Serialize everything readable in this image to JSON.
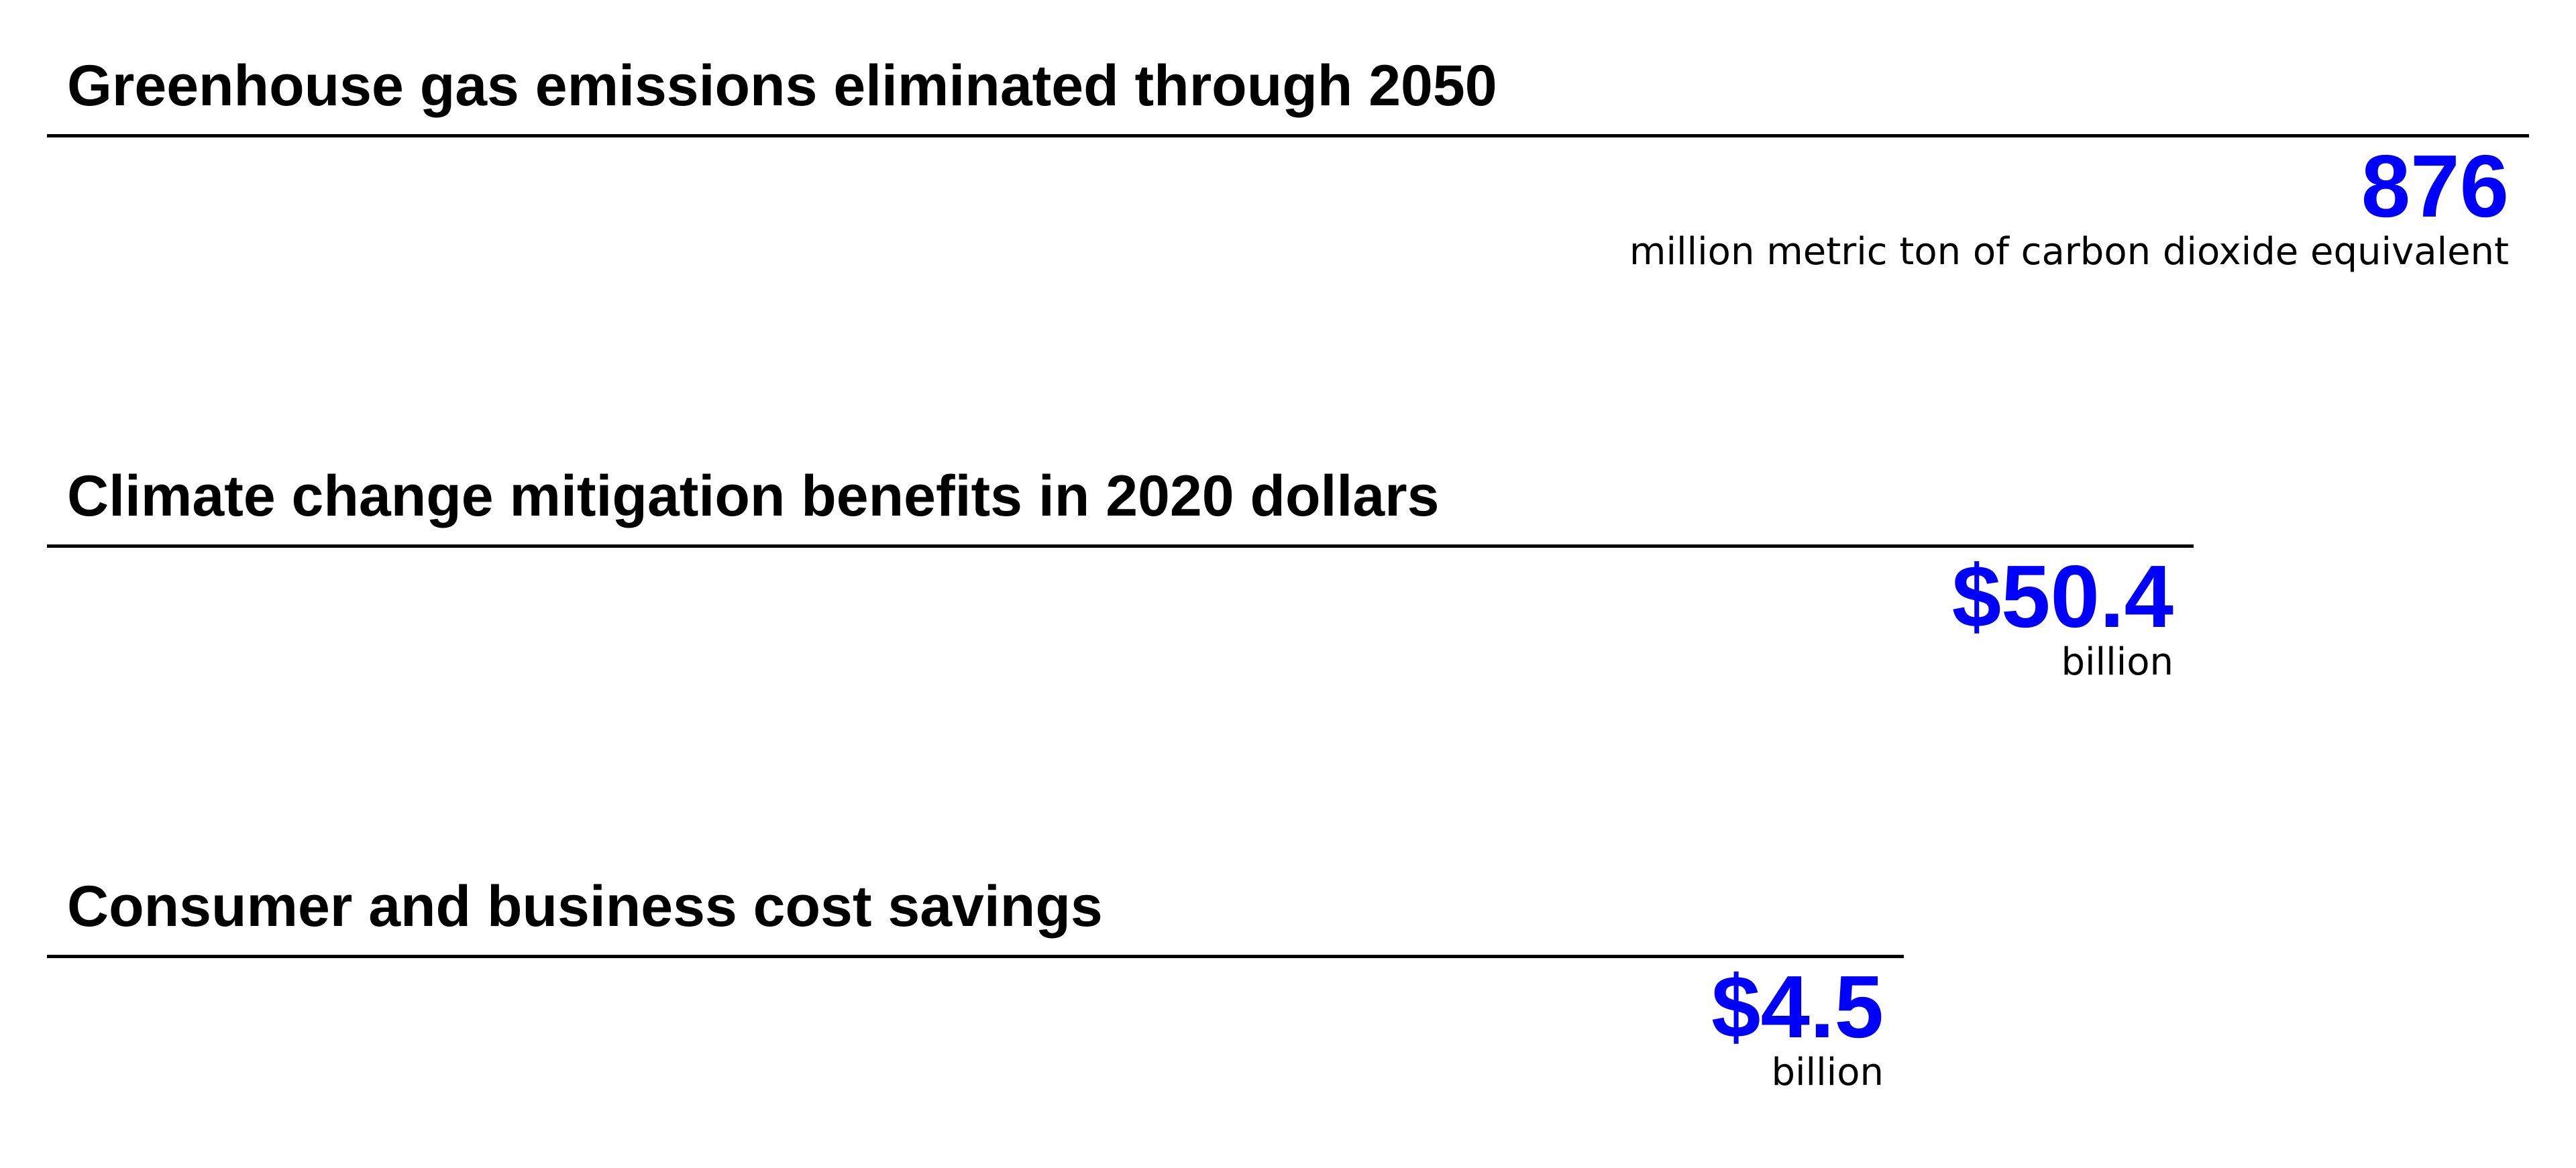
{
  "sections": [
    {
      "title": "Greenhouse gas emissions eliminated through 2050",
      "value": "876",
      "unit": "million metric ton of carbon dioxide equivalent"
    },
    {
      "title": "Climate change mitigation benefits in 2020 dollars",
      "value": "$50.4",
      "unit": "billion"
    },
    {
      "title": "Consumer and business cost savings",
      "value": "$4.5",
      "unit": "billion"
    }
  ],
  "colors": {
    "value": "#0000ff",
    "text": "#000000",
    "background": "#ffffff"
  }
}
